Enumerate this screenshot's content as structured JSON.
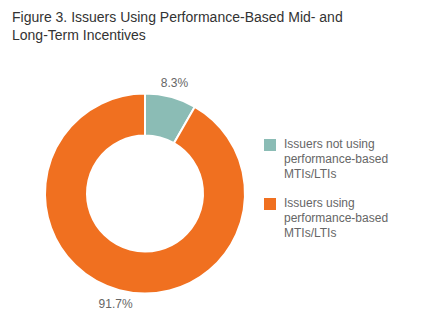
{
  "chart_data": {
    "type": "pie",
    "title": "Figure 3. Issuers Using Performance-Based Mid- and\nLong-Term Incentives",
    "categories": [
      "Issuers not using\nperformance-based\nMTIs/LTIs",
      "Issuers using\nperformance-based\nMTIs/LTIs"
    ],
    "values": [
      8.3,
      91.7
    ],
    "value_labels": [
      "8.3%",
      "91.7%"
    ],
    "colors": [
      "#8bbcb5",
      "#f07020"
    ],
    "data_labels": true,
    "legend": "right"
  }
}
